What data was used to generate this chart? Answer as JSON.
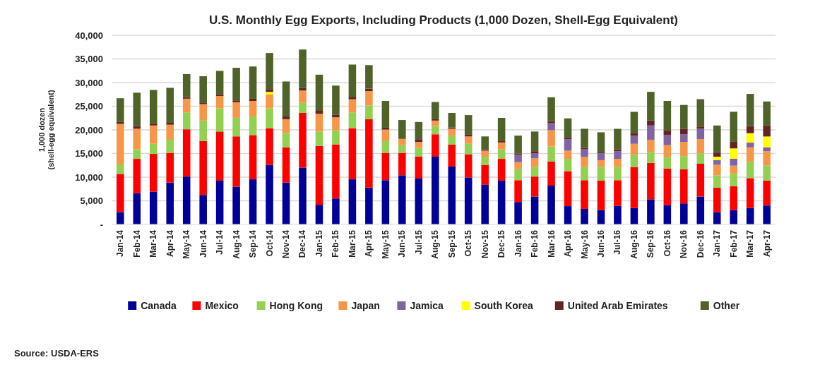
{
  "chart_data": {
    "type": "bar",
    "stacked": true,
    "title": "U.S. Monthly Egg Exports, Including Products (1,000 Dozen, Shell-Egg Equivalent)",
    "ylabel": "1,000 dozen (shell-egg equivalent)",
    "annotations": [
      "Source: USDA-ERS"
    ],
    "categories": [
      "Jan-14",
      "Feb-14",
      "Mar-14",
      "Apr-14",
      "May-14",
      "Jun-14",
      "Jul-14",
      "Aug-14",
      "Sep-14",
      "Oct-14",
      "Nov-14",
      "Dec-14",
      "Jan-15",
      "Feb-15",
      "Mar-15",
      "Apr-15",
      "May-15",
      "Jun-15",
      "Jul-15",
      "Aug-15",
      "Sep-15",
      "Oct-15",
      "Nov-15",
      "Dec-15",
      "Jan-16",
      "Feb-16",
      "Mar-16",
      "Apr-16",
      "May-16",
      "Jun-16",
      "Jul-16",
      "Aug-16",
      "Sep-16",
      "Oct-16",
      "Nov-16",
      "Dec-16",
      "Jan-17",
      "Feb-17",
      "Mar-17",
      "Apr-17"
    ],
    "series": [
      {
        "name": "Canada",
        "color": "#000099",
        "values": [
          2600,
          6650,
          6940,
          8840,
          10120,
          6240,
          9250,
          7980,
          9540,
          12600,
          8840,
          12020,
          4160,
          5490,
          9540,
          7800,
          9360,
          10400,
          9710,
          14330,
          12250,
          9940,
          8380,
          9250,
          4740,
          5900,
          8210,
          3870,
          3290,
          3010,
          3930,
          3470,
          5320,
          4050,
          4450,
          5900,
          2600,
          3010,
          3500,
          4000
        ]
      },
      {
        "name": "Mexico",
        "color": "#ff0000",
        "values": [
          8090,
          7220,
          7980,
          6300,
          10000,
          11390,
          10400,
          10640,
          9360,
          7750,
          7460,
          11560,
          12430,
          11440,
          10810,
          14450,
          5780,
          4740,
          4620,
          4740,
          4620,
          4910,
          4160,
          4620,
          4620,
          4220,
          5090,
          7400,
          6070,
          6240,
          5430,
          8670,
          7690,
          7800,
          7230,
          6940,
          5200,
          5090,
          6300,
          5300
        ]
      },
      {
        "name": "Hong Kong",
        "color": "#92d050",
        "values": [
          2020,
          2020,
          2140,
          2770,
          3580,
          4340,
          4910,
          3930,
          3930,
          4220,
          3060,
          2140,
          3060,
          3000,
          3350,
          2890,
          2490,
          1620,
          1850,
          1730,
          1910,
          2200,
          1790,
          2020,
          2310,
          2020,
          3180,
          2600,
          2770,
          2890,
          2770,
          2600,
          2310,
          2310,
          2770,
          2200,
          2600,
          2600,
          3500,
          3200
        ]
      },
      {
        "name": "Japan",
        "color": "#f79646",
        "values": [
          8550,
          4340,
          3870,
          3180,
          2890,
          3470,
          2600,
          3290,
          3290,
          2890,
          2890,
          2600,
          3760,
          2720,
          2770,
          3060,
          2430,
          1330,
          1270,
          1160,
          1450,
          1560,
          1270,
          1450,
          1500,
          1850,
          3470,
          1730,
          2140,
          1450,
          1730,
          2310,
          2600,
          2600,
          3010,
          3010,
          2200,
          1730,
          3000,
          3000
        ]
      },
      {
        "name": "Jamica",
        "color": "#8064a2",
        "values": [
          0,
          0,
          0,
          0,
          0,
          0,
          0,
          0,
          0,
          0,
          0,
          0,
          0,
          0,
          0,
          0,
          0,
          0,
          0,
          0,
          0,
          0,
          0,
          0,
          1560,
          1040,
          1450,
          2430,
          1620,
          1450,
          1620,
          1730,
          3010,
          2200,
          1620,
          2200,
          980,
          1450,
          1000,
          800
        ]
      },
      {
        "name": "South Korea",
        "color": "#ffff00",
        "values": [
          0,
          0,
          0,
          0,
          0,
          0,
          0,
          0,
          0,
          580,
          0,
          0,
          0,
          0,
          0,
          0,
          0,
          0,
          0,
          0,
          0,
          0,
          0,
          0,
          0,
          0,
          0,
          0,
          0,
          0,
          0,
          0,
          0,
          0,
          0,
          0,
          750,
          2200,
          2000,
          2300
        ]
      },
      {
        "name": "United Arab Emirates",
        "color": "#632523",
        "values": [
          400,
          580,
          460,
          400,
          350,
          350,
          400,
          400,
          460,
          580,
          580,
          580,
          750,
          580,
          400,
          520,
          400,
          0,
          580,
          290,
          290,
          460,
          290,
          290,
          290,
          460,
          460,
          350,
          290,
          290,
          400,
          580,
          1040,
          980,
          1160,
          460,
          980,
          1390,
          1500,
          2400
        ]
      },
      {
        "name": "Other",
        "color": "#4f6228",
        "values": [
          5030,
          7050,
          7050,
          7400,
          4860,
          5550,
          4910,
          6880,
          6820,
          7630,
          7400,
          8090,
          7510,
          6130,
          6940,
          4970,
          5660,
          3990,
          3640,
          3640,
          3060,
          4050,
          2720,
          4910,
          3760,
          4160,
          5030,
          4050,
          4050,
          4160,
          4340,
          4450,
          6070,
          6180,
          5030,
          5780,
          5610,
          6360,
          6800,
          5000
        ]
      }
    ],
    "ylim": [
      0,
      40000
    ],
    "yticks": [
      {
        "value": 0,
        "label": "-"
      },
      {
        "value": 5000,
        "label": "5,000"
      },
      {
        "value": 10000,
        "label": "10,000"
      },
      {
        "value": 15000,
        "label": "15,000"
      },
      {
        "value": 20000,
        "label": "20,000"
      },
      {
        "value": 25000,
        "label": "25,000"
      },
      {
        "value": 30000,
        "label": "30,000"
      },
      {
        "value": 35000,
        "label": "35,000"
      },
      {
        "value": 40000,
        "label": "40,000"
      }
    ],
    "grid": "y",
    "legend": "bottom"
  }
}
